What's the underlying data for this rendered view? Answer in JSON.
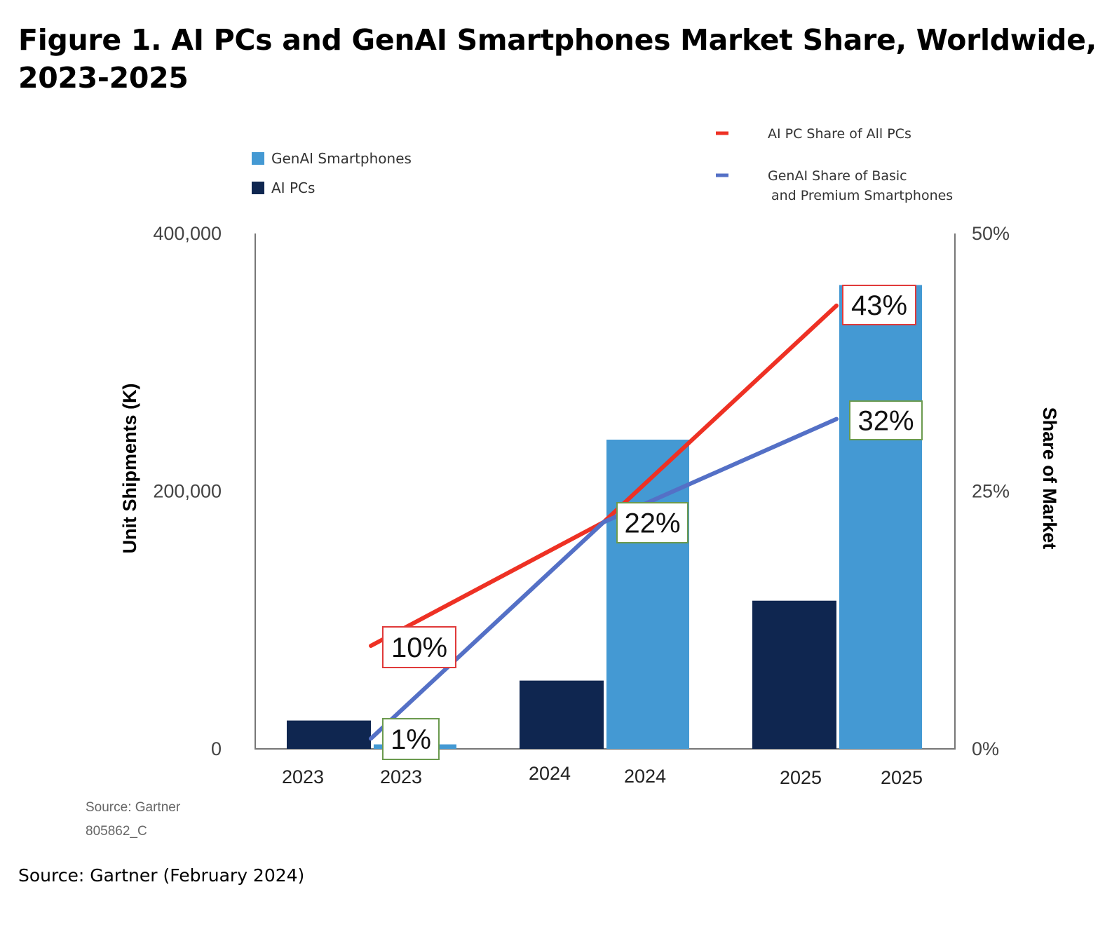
{
  "title": "Figure 1. AI PCs and GenAI Smartphones Market Share, Worldwide, 2023-2025",
  "footer_source": "Source: Gartner (February 2024)",
  "chart_data": {
    "type": "bar",
    "categories": [
      "2023",
      "2024",
      "2025"
    ],
    "bar_x_labels": [
      "2023",
      "2023",
      "2024",
      "2024",
      "2025",
      "2025"
    ],
    "y_label": "Unit Shipments (K)",
    "y2_label": "Share of Market",
    "ylim": [
      0,
      400000
    ],
    "y2lim": [
      0,
      50
    ],
    "y_ticks": [
      {
        "value": 0,
        "label": "0"
      },
      {
        "value": 200000,
        "label": "200,000"
      },
      {
        "value": 400000,
        "label": "400,000"
      }
    ],
    "y2_ticks": [
      {
        "value": 0,
        "label": "0%"
      },
      {
        "value": 25,
        "label": "25%"
      },
      {
        "value": 50,
        "label": "50%"
      }
    ],
    "series": [
      {
        "name": "AI PCs",
        "kind": "bar",
        "color": "#0f2650",
        "values": [
          22000,
          53000,
          115000
        ]
      },
      {
        "name": "GenAI Smartphones",
        "kind": "bar",
        "color": "#4499d3",
        "values": [
          3500,
          240000,
          360000
        ]
      },
      {
        "name": "AI PC Share of All PCs",
        "kind": "line",
        "axis": "y2",
        "color": "#ee3124",
        "values": [
          10,
          22,
          43
        ],
        "labels": [
          "10%",
          "",
          "43%"
        ],
        "label_color": "#e03a3a"
      },
      {
        "name": "GenAI Share of Basic and Premium Smartphones",
        "kind": "line",
        "axis": "y2",
        "color": "#5470c6",
        "values": [
          1,
          22,
          32
        ],
        "labels": [
          "1%",
          "22%",
          "32%"
        ],
        "label_color": "#6b9a4e"
      }
    ],
    "legend": {
      "left": [
        "GenAI Smartphones",
        "AI PCs"
      ],
      "right_lines": [
        [
          "AI PC Share of All PCs"
        ],
        [
          "GenAI Share of Basic",
          "and Premium Smartphones"
        ]
      ]
    },
    "source_note": "Source: Gartner",
    "figure_id": "805862_C",
    "grid": false
  }
}
